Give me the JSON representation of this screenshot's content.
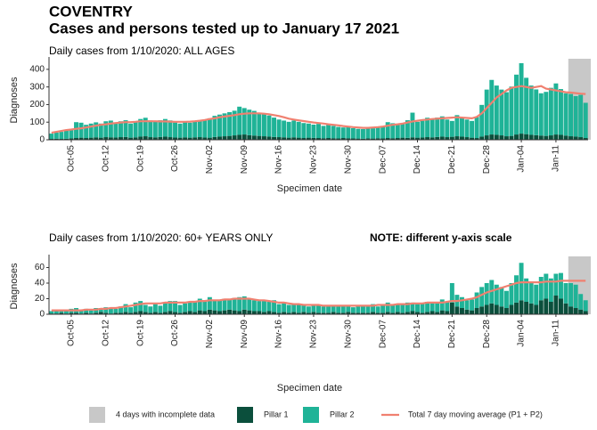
{
  "header": {
    "title": "COVENTRY",
    "subtitle": "Cases and persons tested up to January 17 2021"
  },
  "legend": {
    "incomplete_label": "4 days with incomplete data",
    "incomplete_days": 4,
    "incomplete_color": "#c8c8c8"
  },
  "chart_data": [
    {
      "type": "bar",
      "stacked": true,
      "title": "Daily cases from 1/10/2020: ALL AGES",
      "y_label": "Diagnoses",
      "x_label": "Specimen date",
      "categories": [
        null,
        null,
        null,
        null,
        "Oct-05",
        null,
        null,
        null,
        null,
        null,
        null,
        "Oct-12",
        null,
        null,
        null,
        null,
        null,
        null,
        "Oct-19",
        null,
        null,
        null,
        null,
        null,
        null,
        "Oct-26",
        null,
        null,
        null,
        null,
        null,
        null,
        "Nov-02",
        null,
        null,
        null,
        null,
        null,
        null,
        "Nov-09",
        null,
        null,
        null,
        null,
        null,
        null,
        "Nov-16",
        null,
        null,
        null,
        null,
        null,
        null,
        "Nov-23",
        null,
        null,
        null,
        null,
        null,
        null,
        "Nov-30",
        null,
        null,
        null,
        null,
        null,
        null,
        "Dec-07",
        null,
        null,
        null,
        null,
        null,
        null,
        "Dec-14",
        null,
        null,
        null,
        null,
        null,
        null,
        "Dec-21",
        null,
        null,
        null,
        null,
        null,
        null,
        "Dec-28",
        null,
        null,
        null,
        null,
        null,
        null,
        "Jan-04",
        null,
        null,
        null,
        null,
        null,
        null,
        "Jan-11",
        null,
        null,
        null,
        null,
        null,
        null
      ],
      "ylim": [
        0,
        450
      ],
      "yticks": [
        0,
        100,
        200,
        300,
        400
      ],
      "series": [
        {
          "name": "Pillar 1",
          "type": "bar",
          "color": "#0b4f3c",
          "values": [
            5,
            6,
            5,
            6,
            8,
            10,
            12,
            10,
            12,
            14,
            12,
            15,
            14,
            13,
            15,
            16,
            12,
            14,
            18,
            20,
            15,
            14,
            16,
            18,
            15,
            13,
            12,
            14,
            12,
            14,
            15,
            13,
            12,
            16,
            18,
            20,
            22,
            25,
            28,
            30,
            26,
            24,
            22,
            20,
            18,
            16,
            15,
            14,
            12,
            14,
            12,
            10,
            12,
            11,
            10,
            9,
            10,
            9,
            8,
            10,
            9,
            8,
            7,
            6,
            8,
            7,
            9,
            8,
            10,
            9,
            10,
            12,
            11,
            14,
            12,
            13,
            15,
            14,
            16,
            18,
            15,
            17,
            20,
            18,
            15,
            12,
            10,
            18,
            25,
            30,
            28,
            25,
            20,
            22,
            30,
            35,
            32,
            28,
            26,
            24,
            22,
            25,
            30,
            28,
            24,
            20,
            18,
            15,
            10
          ]
        },
        {
          "name": "Pillar 2",
          "type": "bar",
          "color": "#1fb397",
          "values": [
            30,
            35,
            40,
            45,
            50,
            90,
            85,
            75,
            80,
            85,
            80,
            90,
            95,
            85,
            90,
            95,
            80,
            85,
            100,
            105,
            95,
            90,
            95,
            100,
            95,
            85,
            80,
            90,
            85,
            90,
            95,
            100,
            110,
            120,
            125,
            130,
            135,
            140,
            160,
            150,
            145,
            140,
            130,
            125,
            120,
            110,
            100,
            95,
            90,
            95,
            90,
            85,
            80,
            75,
            80,
            70,
            75,
            70,
            65,
            60,
            62,
            58,
            55,
            55,
            60,
            58,
            62,
            70,
            90,
            85,
            75,
            80,
            100,
            140,
            90,
            95,
            110,
            100,
            110,
            115,
            100,
            90,
            120,
            110,
            100,
            95,
            120,
            180,
            260,
            310,
            280,
            260,
            250,
            280,
            340,
            400,
            320,
            280,
            260,
            240,
            250,
            270,
            290,
            260,
            240,
            240,
            230,
            240,
            200
          ]
        },
        {
          "name": "Total 7 day moving average (P1 + P2)",
          "type": "line",
          "color": "#f08070",
          "values": [
            40,
            45,
            50,
            55,
            58,
            62,
            65,
            70,
            75,
            80,
            85,
            88,
            92,
            95,
            98,
            100,
            100,
            102,
            105,
            105,
            105,
            105,
            104,
            104,
            103,
            102,
            102,
            102,
            103,
            105,
            108,
            112,
            118,
            122,
            128,
            132,
            136,
            140,
            145,
            148,
            150,
            150,
            150,
            148,
            145,
            140,
            135,
            128,
            120,
            115,
            110,
            106,
            102,
            98,
            95,
            92,
            88,
            85,
            82,
            78,
            75,
            72,
            70,
            68,
            68,
            70,
            72,
            75,
            80,
            85,
            88,
            92,
            98,
            104,
            108,
            112,
            115,
            118,
            120,
            122,
            124,
            126,
            128,
            126,
            124,
            122,
            130,
            150,
            180,
            210,
            240,
            260,
            280,
            295,
            300,
            305,
            300,
            295,
            300,
            305,
            290,
            285,
            280,
            275,
            270,
            268,
            265,
            262,
            260
          ]
        }
      ]
    },
    {
      "type": "bar",
      "stacked": true,
      "title": "Daily cases from 1/10/2020: 60+ YEARS ONLY",
      "note": "NOTE: different y-axis scale",
      "y_label": "Diagnoses",
      "x_label": "Specimen date",
      "categories": [
        null,
        null,
        null,
        null,
        "Oct-05",
        null,
        null,
        null,
        null,
        null,
        null,
        "Oct-12",
        null,
        null,
        null,
        null,
        null,
        null,
        "Oct-19",
        null,
        null,
        null,
        null,
        null,
        null,
        "Oct-26",
        null,
        null,
        null,
        null,
        null,
        null,
        "Nov-02",
        null,
        null,
        null,
        null,
        null,
        null,
        "Nov-09",
        null,
        null,
        null,
        null,
        null,
        null,
        "Nov-16",
        null,
        null,
        null,
        null,
        null,
        null,
        "Nov-23",
        null,
        null,
        null,
        null,
        null,
        null,
        "Nov-30",
        null,
        null,
        null,
        null,
        null,
        null,
        "Dec-07",
        null,
        null,
        null,
        null,
        null,
        null,
        "Dec-14",
        null,
        null,
        null,
        null,
        null,
        null,
        "Dec-21",
        null,
        null,
        null,
        null,
        null,
        null,
        "Dec-28",
        null,
        null,
        null,
        null,
        null,
        null,
        "Jan-04",
        null,
        null,
        null,
        null,
        null,
        null,
        "Jan-11",
        null,
        null,
        null,
        null,
        null,
        null
      ],
      "ylim": [
        0,
        72
      ],
      "yticks": [
        0,
        20,
        40,
        60
      ],
      "series": [
        {
          "name": "Pillar 1",
          "type": "bar",
          "color": "#0b4f3c",
          "values": [
            1,
            1,
            2,
            1,
            2,
            2,
            1,
            2,
            1,
            2,
            3,
            2,
            1,
            2,
            2,
            3,
            2,
            3,
            4,
            3,
            2,
            3,
            2,
            3,
            4,
            3,
            2,
            3,
            4,
            3,
            5,
            4,
            6,
            5,
            4,
            5,
            6,
            5,
            4,
            6,
            5,
            4,
            4,
            3,
            4,
            3,
            2,
            3,
            2,
            3,
            2,
            3,
            2,
            3,
            2,
            2,
            2,
            3,
            2,
            2,
            3,
            2,
            2,
            2,
            2,
            3,
            2,
            2,
            3,
            2,
            3,
            2,
            3,
            4,
            3,
            2,
            3,
            4,
            3,
            5,
            4,
            15,
            10,
            8,
            6,
            5,
            8,
            10,
            12,
            14,
            12,
            10,
            8,
            12,
            15,
            18,
            16,
            14,
            12,
            18,
            20,
            16,
            24,
            20,
            14,
            10,
            8,
            6,
            4
          ]
        },
        {
          "name": "Pillar 2",
          "type": "bar",
          "color": "#1fb397",
          "values": [
            3,
            4,
            3,
            4,
            5,
            6,
            4,
            5,
            4,
            6,
            5,
            7,
            6,
            5,
            8,
            10,
            7,
            12,
            13,
            9,
            8,
            10,
            9,
            12,
            13,
            14,
            10,
            11,
            12,
            13,
            15,
            14,
            16,
            13,
            14,
            15,
            14,
            16,
            18,
            17,
            15,
            14,
            13,
            14,
            12,
            15,
            11,
            12,
            10,
            10,
            11,
            9,
            8,
            10,
            9,
            8,
            9,
            8,
            10,
            9,
            8,
            7,
            9,
            8,
            9,
            10,
            8,
            9,
            12,
            10,
            9,
            10,
            12,
            11,
            10,
            12,
            13,
            12,
            11,
            14,
            12,
            25,
            15,
            14,
            12,
            14,
            20,
            25,
            28,
            30,
            26,
            25,
            22,
            28,
            35,
            48,
            30,
            28,
            26,
            30,
            32,
            30,
            28,
            33,
            26,
            30,
            30,
            20,
            14
          ]
        },
        {
          "name": "Total 7 day moving average (P1 + P2)",
          "type": "line",
          "color": "#f08070",
          "values": [
            5,
            5,
            5,
            5,
            5,
            5,
            5,
            6,
            6,
            6,
            7,
            7,
            8,
            8,
            9,
            10,
            11,
            12,
            13,
            14,
            14,
            14,
            14,
            15,
            15,
            15,
            15,
            15,
            16,
            16,
            17,
            17,
            18,
            18,
            18,
            19,
            19,
            20,
            20,
            20,
            20,
            19,
            18,
            18,
            17,
            16,
            15,
            15,
            14,
            13,
            13,
            12,
            12,
            12,
            12,
            11,
            11,
            11,
            11,
            11,
            11,
            11,
            11,
            11,
            11,
            11,
            12,
            12,
            12,
            12,
            13,
            13,
            13,
            14,
            14,
            14,
            15,
            15,
            15,
            15,
            16,
            17,
            17,
            18,
            19,
            20,
            22,
            25,
            28,
            30,
            32,
            34,
            36,
            38,
            40,
            41,
            41,
            41,
            41,
            41,
            42,
            42,
            42,
            43,
            43,
            43,
            43,
            43,
            43
          ]
        }
      ]
    }
  ]
}
